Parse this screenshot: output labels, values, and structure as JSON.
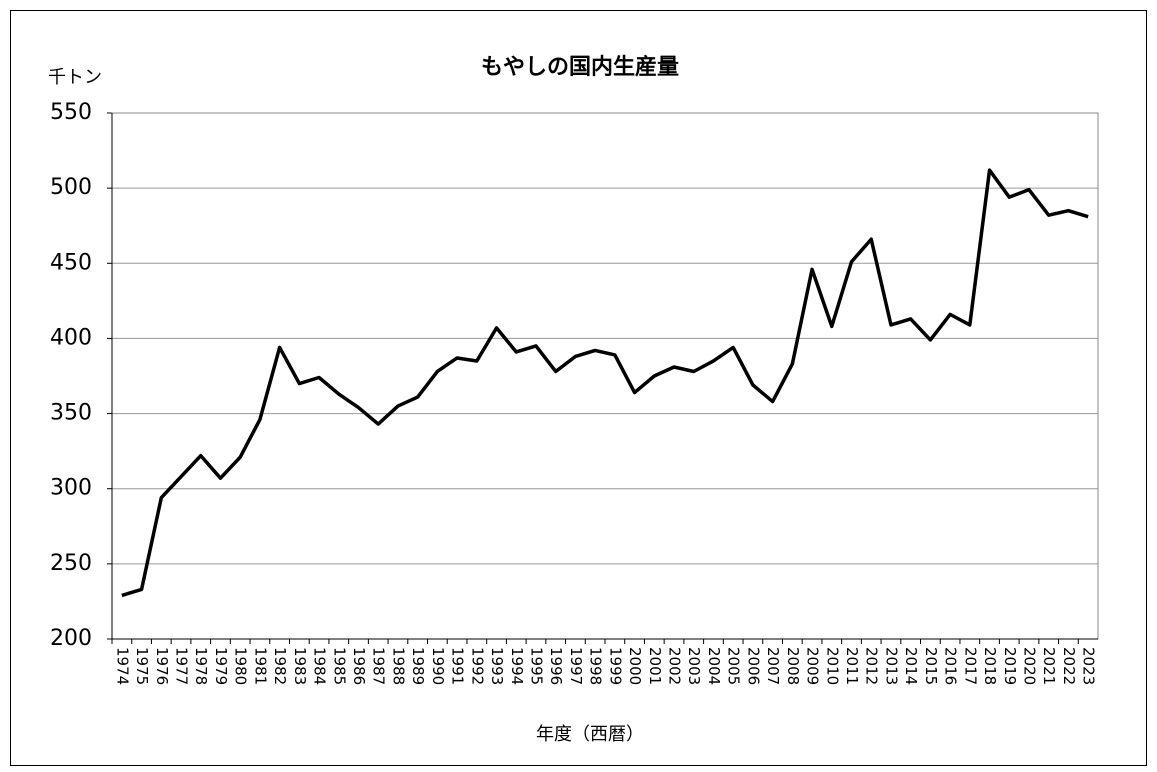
{
  "chart_data": {
    "type": "line",
    "title": "もやしの国内生産量",
    "y_unit_label": "千トン",
    "x_label": "年度（西暦）",
    "categories": [
      "1974",
      "1975",
      "1976",
      "1977",
      "1978",
      "1979",
      "1980",
      "1981",
      "1982",
      "1983",
      "1984",
      "1985",
      "1986",
      "1987",
      "1988",
      "1989",
      "1990",
      "1991",
      "1992",
      "1993",
      "1994",
      "1995",
      "1996",
      "1997",
      "1998",
      "1999",
      "2000",
      "2001",
      "2002",
      "2003",
      "2004",
      "2005",
      "2006",
      "2007",
      "2008",
      "2009",
      "2010",
      "2011",
      "2012",
      "2013",
      "2014",
      "2015",
      "2016",
      "2017",
      "2018",
      "2019",
      "2020",
      "2021",
      "2022",
      "2023"
    ],
    "series": [
      {
        "name": "もやし",
        "color": "#000000",
        "values": [
          229,
          233,
          294,
          308,
          322,
          307,
          321,
          346,
          394,
          370,
          374,
          363,
          354,
          343,
          355,
          361,
          378,
          387,
          385,
          407,
          391,
          395,
          378,
          388,
          392,
          389,
          364,
          375,
          381,
          378,
          385,
          394,
          369,
          358,
          383,
          446,
          408,
          451,
          466,
          409,
          413,
          399,
          416,
          409,
          512,
          494,
          499,
          482,
          485,
          481
        ]
      }
    ],
    "ylim": [
      200,
      550
    ],
    "yticks": [
      200,
      250,
      300,
      350,
      400,
      450,
      500,
      550
    ],
    "grid": true
  }
}
